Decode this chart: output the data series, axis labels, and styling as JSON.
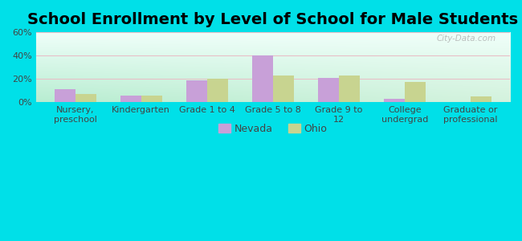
{
  "title": "School Enrollment by Level of School for Male Students",
  "categories": [
    "Nursery,\npreschool",
    "Kindergarten",
    "Grade 1 to 4",
    "Grade 5 to 8",
    "Grade 9 to\n12",
    "College\nundergrad",
    "Graduate or\nprofessional"
  ],
  "nevada": [
    11,
    6,
    19,
    40,
    21,
    3,
    0
  ],
  "ohio": [
    7,
    6,
    20,
    23,
    23,
    17,
    5
  ],
  "nevada_color": "#c8a0d8",
  "ohio_color": "#c8d490",
  "background_color": "#00e0e8",
  "ylim": [
    0,
    60
  ],
  "yticks": [
    0,
    20,
    40,
    60
  ],
  "ytick_labels": [
    "0%",
    "20%",
    "40%",
    "60%"
  ],
  "title_fontsize": 14,
  "tick_fontsize": 8,
  "legend_fontsize": 9,
  "bar_width": 0.32,
  "watermark": "City-Data.com",
  "grid_color": "#e8c0c8",
  "plot_bg_topleft": "#c8f0d8",
  "plot_bg_topright": "#e8f8f8",
  "plot_bg_bottomleft": "#c8f0d0",
  "plot_bg_bottomright": "#f0fff8"
}
